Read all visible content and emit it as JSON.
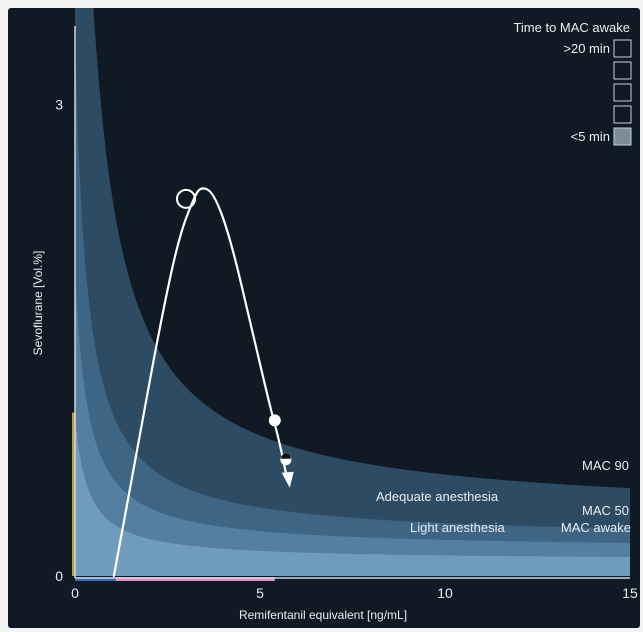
{
  "chart_data": {
    "type": "area",
    "xlabel": "Remifentanil equivalent [ng/mL]",
    "ylabel": "Sevoflurane [Vol.%]",
    "xlim": [
      0,
      15
    ],
    "ylim": [
      0,
      3.5
    ],
    "x_ticks": [
      {
        "value": 0,
        "label": "0"
      },
      {
        "value": 5,
        "label": "5"
      },
      {
        "value": 10,
        "label": "10"
      },
      {
        "value": 15,
        "label": "15"
      }
    ],
    "y_ticks": [
      {
        "value": 0,
        "label": "0"
      },
      {
        "value": 3,
        "label": "3"
      }
    ],
    "curve_labels": {
      "mac90": "MAC 90",
      "mac50": "MAC 50",
      "mac_awake": "MAC awake",
      "adequate": "Adequate anesthesia",
      "light": "Light anesthesia"
    },
    "bands": [
      {
        "key": "mac90",
        "color": "#2d4c63",
        "asymptote": 0.38,
        "k": 2.75
      },
      {
        "key": "mac50",
        "color": "#3e6584",
        "asymptote": 0.23,
        "k": 1.1
      },
      {
        "key": "mac50b",
        "color": "#557fa0",
        "asymptote": 0.17,
        "k": 0.62
      },
      {
        "key": "mac_awake",
        "color": "#6f9cbd",
        "asymptote": 0.1,
        "k": 0.32
      }
    ],
    "trajectory": {
      "color": "#ffffff",
      "points": [
        {
          "x": 1.05,
          "y": 0.0
        },
        {
          "x": 1.6,
          "y": 0.7
        },
        {
          "x": 2.3,
          "y": 1.6
        },
        {
          "x": 2.8,
          "y": 2.15
        },
        {
          "x": 3.2,
          "y": 2.4
        },
        {
          "x": 3.4,
          "y": 2.48
        },
        {
          "x": 3.75,
          "y": 2.44
        },
        {
          "x": 4.2,
          "y": 2.15
        },
        {
          "x": 4.8,
          "y": 1.55
        },
        {
          "x": 5.3,
          "y": 1.05
        },
        {
          "x": 5.5,
          "y": 0.88
        },
        {
          "x": 5.75,
          "y": 0.6
        }
      ],
      "start_marker": {
        "x": 3.0,
        "y": 2.4
      },
      "mid_marker": {
        "x": 5.4,
        "y": 0.99
      },
      "current_marker": {
        "x": 5.7,
        "y": 0.74
      }
    },
    "y_indicator": {
      "value": 1.04,
      "color": "#b8a04a"
    },
    "x_indicator": [
      {
        "from": 0,
        "to": 1.1,
        "color": "#3a66b8"
      },
      {
        "from": 1.1,
        "to": 5.4,
        "color": "#e58fbf"
      }
    ]
  },
  "legend": {
    "title": "Time to MAC awake",
    "items": [
      {
        "label": ">20 min",
        "fill": "#0f1a25"
      },
      {
        "label": "",
        "fill": "#0f1a25"
      },
      {
        "label": "",
        "fill": "#0f1a25"
      },
      {
        "label": "",
        "fill": "#0f1a25"
      },
      {
        "label": "<5 min",
        "fill": "#7d8c97"
      }
    ]
  }
}
